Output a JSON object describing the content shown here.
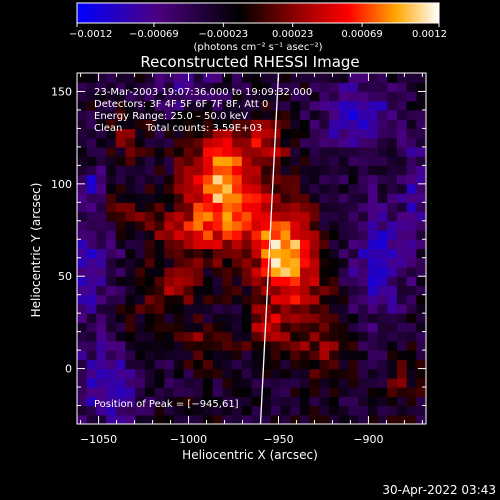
{
  "chart_data": {
    "type": "heatmap",
    "title": "Reconstructed RHESSI Image",
    "xlabel": "Heliocentric X (arcsec)",
    "ylabel": "Heliocentric Y (arcsec)",
    "xlim": [
      -1062,
      -868
    ],
    "ylim": [
      -30,
      160
    ],
    "x_ticks": [
      -1050,
      -1000,
      -950,
      -900
    ],
    "x_tick_labels": [
      "−1050",
      "−1000",
      "−950",
      "−900"
    ],
    "y_ticks": [
      0,
      50,
      100,
      150
    ],
    "y_tick_labels": [
      "0",
      "50",
      "100",
      "150"
    ],
    "colorbar": {
      "range": [
        -0.0012,
        0.0012
      ],
      "ticks": [
        -0.0012,
        -0.00069,
        -0.00023,
        0.00023,
        0.00069,
        0.0012
      ],
      "tick_labels": [
        "−0.0012",
        "−0.00069",
        "−0.00023",
        "0.00023",
        "0.00069",
        "0.0012"
      ],
      "unit_label": "(photons cm⁻² s⁻¹ asec⁻²)",
      "colors": [
        "#0000ff",
        "#4b0082",
        "#000000",
        "#8b0000",
        "#ff0000",
        "#ffa500",
        "#ffffff"
      ]
    },
    "annotations": {
      "time_range": "23‑Mar‑2003 19:07:36.000 to 19:09:32.000",
      "detectors": "Detectors: 3F 4F 5F 6F 7F 8F, Att 0",
      "energy_range": "Energy Range: 25.0 – 50.0 keV",
      "clean_label": "Clean",
      "total_counts": "Total counts: 3.59E+03",
      "peak_position": "Position of Peak = [−945,61]"
    },
    "peak": {
      "x": -945,
      "y": 61
    },
    "limb_line": {
      "x_top": -950,
      "x_bottom": -960
    },
    "hot_spots": [
      {
        "x": -945,
        "y": 61,
        "amp": 0.00115,
        "sx": 11,
        "sy": 13
      },
      {
        "x": -985,
        "y": 104,
        "amp": 0.00095,
        "sx": 12,
        "sy": 16
      },
      {
        "x": -965,
        "y": 82,
        "amp": 0.0007,
        "sx": 18,
        "sy": 18
      },
      {
        "x": -1000,
        "y": 74,
        "amp": 0.0006,
        "sx": 14,
        "sy": 10
      },
      {
        "x": -1038,
        "y": 84,
        "amp": 0.00055,
        "sx": 10,
        "sy": 8
      },
      {
        "x": -1010,
        "y": 44,
        "amp": 0.0005,
        "sx": 10,
        "sy": 8
      },
      {
        "x": -960,
        "y": 122,
        "amp": 0.00065,
        "sx": 10,
        "sy": 9
      },
      {
        "x": -955,
        "y": 24,
        "amp": 0.00055,
        "sx": 9,
        "sy": 10
      },
      {
        "x": -925,
        "y": 14,
        "amp": 0.0005,
        "sx": 10,
        "sy": 12
      },
      {
        "x": -935,
        "y": 40,
        "amp": 0.00045,
        "sx": 10,
        "sy": 8
      },
      {
        "x": -990,
        "y": 14,
        "amp": 0.00045,
        "sx": 10,
        "sy": 8
      },
      {
        "x": -1035,
        "y": 125,
        "amp": 0.00035,
        "sx": 8,
        "sy": 8
      },
      {
        "x": -880,
        "y": -5,
        "amp": 0.0003,
        "sx": 7,
        "sy": 10
      },
      {
        "x": -1035,
        "y": 30,
        "amp": 0.0003,
        "sx": 8,
        "sy": 8
      },
      {
        "x": -905,
        "y": 135,
        "amp": -0.00075,
        "sx": 14,
        "sy": 14
      },
      {
        "x": -1055,
        "y": 60,
        "amp": -0.00055,
        "sx": 12,
        "sy": 30
      },
      {
        "x": -895,
        "y": 60,
        "amp": -0.00065,
        "sx": 12,
        "sy": 25
      },
      {
        "x": -1045,
        "y": -10,
        "amp": -0.00065,
        "sx": 14,
        "sy": 14
      },
      {
        "x": -1000,
        "y": 150,
        "amp": -0.00045,
        "sx": 15,
        "sy": 8
      },
      {
        "x": -1052,
        "y": 102,
        "amp": -0.00045,
        "sx": 4,
        "sy": 5
      },
      {
        "x": -873,
        "y": 100,
        "amp": -0.00045,
        "sx": 6,
        "sy": 20
      }
    ]
  },
  "footer": {
    "timestamp": "30‑Apr‑2022 03:43"
  }
}
